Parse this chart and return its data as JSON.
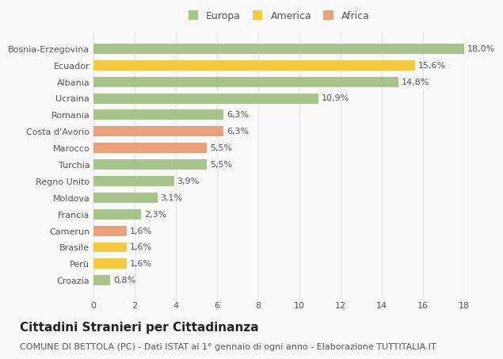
{
  "categories": [
    "Croazia",
    "Perù",
    "Brasile",
    "Camerun",
    "Francia",
    "Moldova",
    "Regno Unito",
    "Turchia",
    "Marocco",
    "Costa d'Avorio",
    "Romania",
    "Ucraina",
    "Albania",
    "Ecuador",
    "Bosnia-Erzegovina"
  ],
  "values": [
    0.8,
    1.6,
    1.6,
    1.6,
    2.3,
    3.1,
    3.9,
    5.5,
    5.5,
    6.3,
    6.3,
    10.9,
    14.8,
    15.6,
    18.0
  ],
  "labels": [
    "0,8%",
    "1,6%",
    "1,6%",
    "1,6%",
    "2,3%",
    "3,1%",
    "3,9%",
    "5,5%",
    "5,5%",
    "6,3%",
    "6,3%",
    "10,9%",
    "14,8%",
    "15,6%",
    "18,0%"
  ],
  "colors": [
    "#a8c48a",
    "#f5c842",
    "#f5c842",
    "#e8a07a",
    "#a8c48a",
    "#a8c48a",
    "#a8c48a",
    "#a8c48a",
    "#e8a07a",
    "#e8a07a",
    "#a8c48a",
    "#a8c48a",
    "#a8c48a",
    "#f5c842",
    "#a8c48a"
  ],
  "legend_colors": {
    "Europa": "#a8c48a",
    "America": "#f5c842",
    "Africa": "#e8a07a"
  },
  "title": "Cittadini Stranieri per Cittadinanza",
  "subtitle": "COMUNE DI BETTOLA (PC) - Dati ISTAT al 1° gennaio di ogni anno - Elaborazione TUTTITALIA.IT",
  "xlim": [
    0,
    18
  ],
  "xticks": [
    0,
    2,
    4,
    6,
    8,
    10,
    12,
    14,
    16,
    18
  ],
  "background_color": "#f9f9f9",
  "grid_color": "#e8e8e8",
  "text_color": "#555555",
  "title_color": "#222222",
  "title_fontsize": 11,
  "subtitle_fontsize": 8,
  "label_fontsize": 8,
  "tick_fontsize": 8,
  "bar_height": 0.62
}
